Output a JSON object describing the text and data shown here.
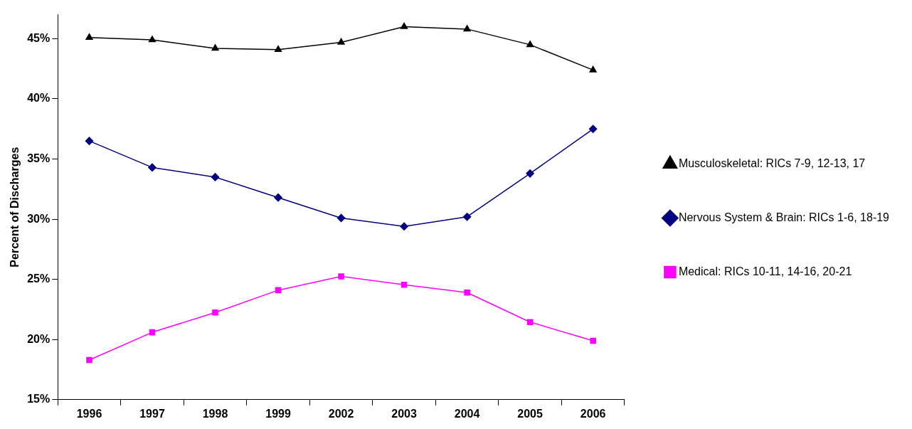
{
  "chart_data": {
    "type": "line",
    "ylabel": "Percent of Discharges",
    "categories": [
      "1996",
      "1997",
      "1998",
      "1999",
      "2002",
      "2003",
      "2004",
      "2005",
      "2006"
    ],
    "series": [
      {
        "name": "Musculoskeletal: RICs 7-9, 12-13, 17",
        "color": "#000000",
        "marker": "triangle",
        "values": [
          45.1,
          44.9,
          44.2,
          44.1,
          44.7,
          46.0,
          45.8,
          44.5,
          42.4
        ]
      },
      {
        "name": "Nervous System & Brain: RICs 1-6, 18-19",
        "color": "#000080",
        "marker": "diamond",
        "values": [
          36.5,
          34.3,
          33.5,
          31.8,
          30.1,
          29.4,
          30.2,
          33.8,
          37.5
        ]
      },
      {
        "name": "Medical: RICs 10-11, 14-16, 20-21",
        "color": "#ff00ff",
        "marker": "square",
        "values": [
          18.3,
          20.6,
          22.25,
          24.1,
          25.25,
          24.55,
          23.9,
          21.45,
          19.9
        ]
      }
    ],
    "ylim": [
      15,
      47
    ],
    "yticks": [
      {
        "value": 15,
        "label": "15%"
      },
      {
        "value": 20,
        "label": "20%"
      },
      {
        "value": 25,
        "label": "25%"
      },
      {
        "value": 30,
        "label": "30%"
      },
      {
        "value": 35,
        "label": "35%"
      },
      {
        "value": 40,
        "label": "40%"
      },
      {
        "value": 45,
        "label": "45%"
      }
    ],
    "grid": false,
    "legend": "right",
    "line_style": "solid"
  }
}
